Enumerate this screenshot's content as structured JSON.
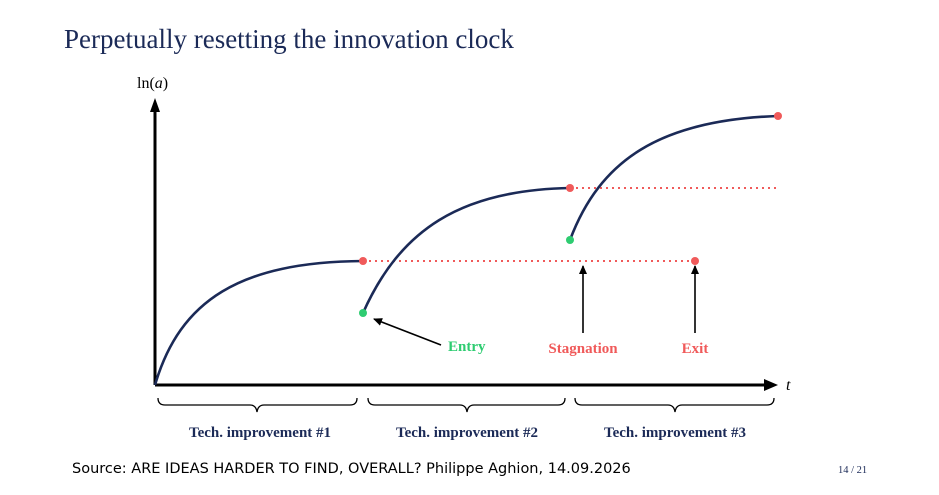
{
  "slide": {
    "title": "Perpetually resetting the innovation clock",
    "source": "Source: ARE IDEAS HARDER TO FIND, OVERALL? Philippe Aghion, 14.09.2026",
    "page": "14 / 21"
  },
  "diagram": {
    "axis_y_label_prefix": "ln(",
    "axis_y_label_var": "a",
    "axis_y_label_suffix": ")",
    "axis_x_label": "t",
    "annotations": {
      "entry": "Entry",
      "stagnation": "Stagnation",
      "exit": "Exit"
    },
    "phases": [
      "Tech. improvement #1",
      "Tech. improvement #2",
      "Tech. improvement #3"
    ],
    "colors": {
      "curve": "#1b2a57",
      "entry": "#2ecc71",
      "stagnation": "#f05a5a",
      "axis": "#000000"
    }
  }
}
